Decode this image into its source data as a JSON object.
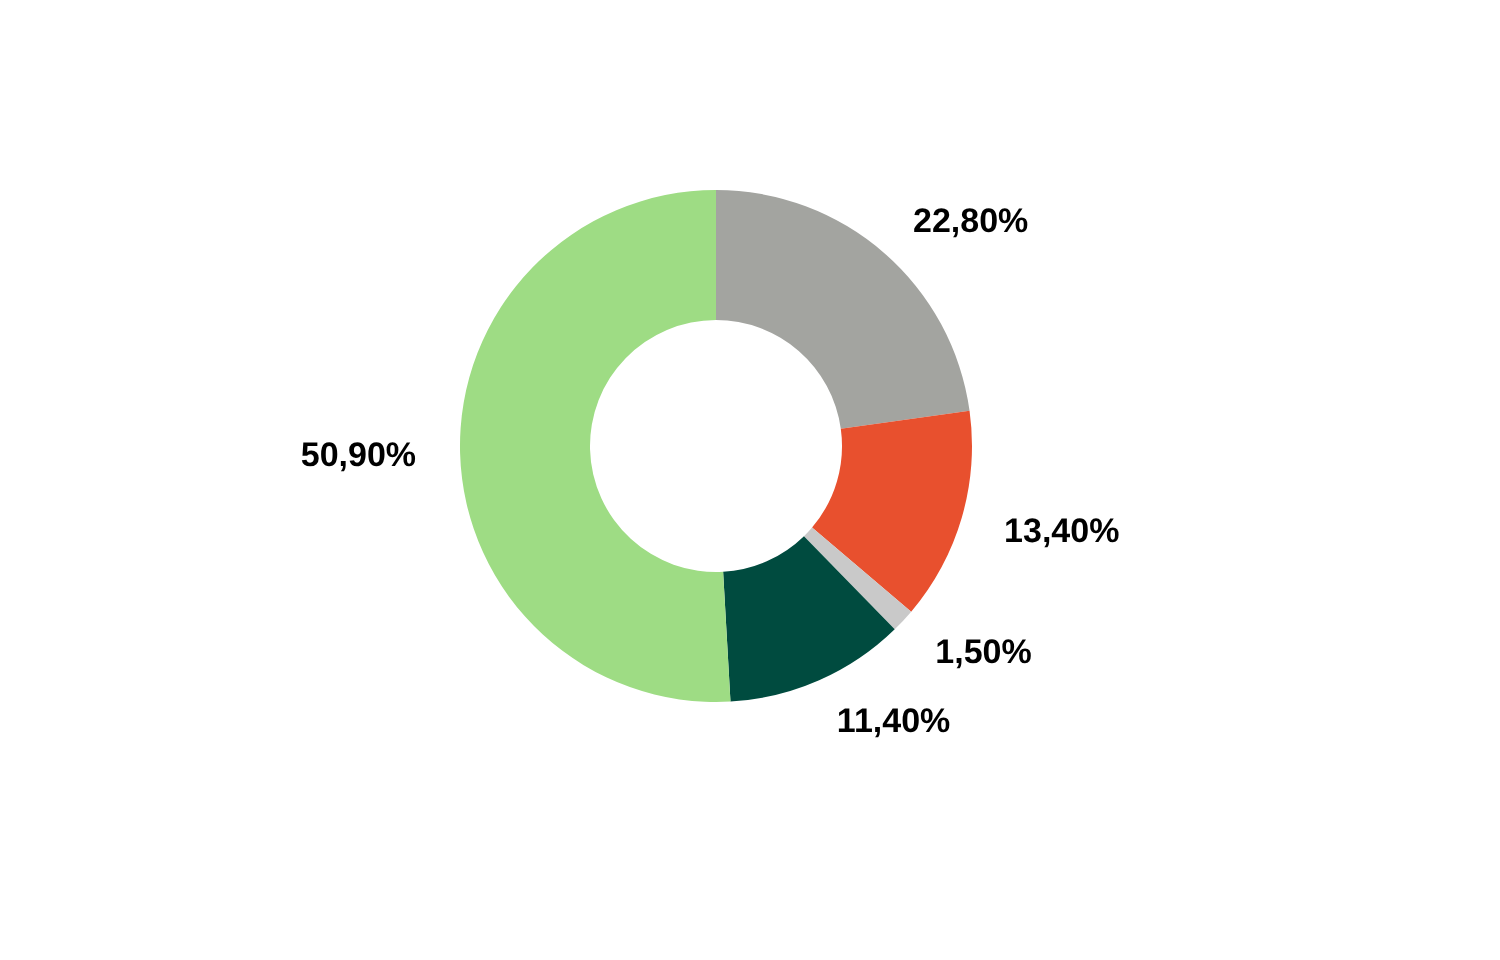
{
  "chart_data": {
    "type": "donut",
    "categories": [
      null,
      null,
      null,
      null,
      null
    ],
    "values": [
      22.8,
      13.4,
      1.5,
      11.4,
      50.9
    ],
    "colors": [
      "#a3a4a0",
      "#e8502e",
      "#c9c9c9",
      "#004b3f",
      "#9edc84"
    ],
    "value_labels": [
      "22,80%",
      "13,40%",
      "1,50%",
      "11,40%",
      "50,90%"
    ]
  }
}
